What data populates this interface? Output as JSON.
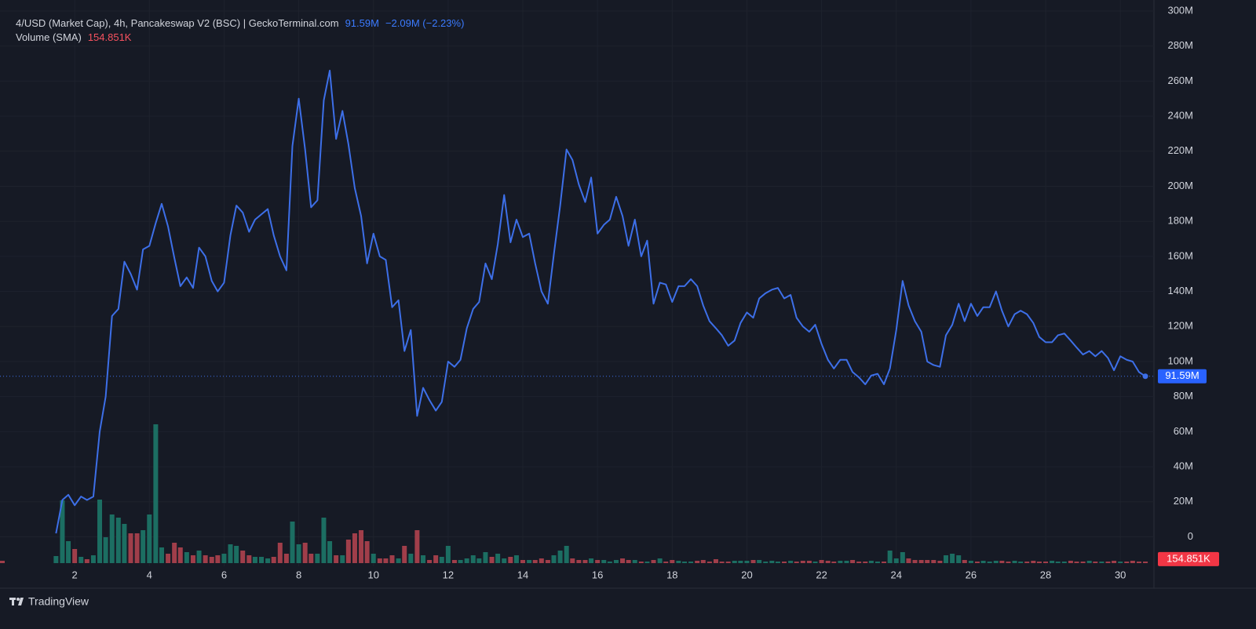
{
  "chart_data": {
    "type": "line",
    "header": {
      "title": "4/USD (Market Cap), 4h, Pancakeswap V2 (BSC) | GeckoTerminal.com",
      "last": {
        "value": 91.59,
        "label": "91.59M"
      },
      "change": "−2.09M (−2.23%)"
    },
    "volume_sma": {
      "label": "Volume (SMA)",
      "value": 154.851,
      "value_label": "154.851K"
    },
    "footer": {
      "brand": "TradingView"
    },
    "x": [
      1.5,
      1.67,
      1.83,
      2,
      2.17,
      2.33,
      2.5,
      2.67,
      2.83,
      3,
      3.17,
      3.33,
      3.5,
      3.67,
      3.83,
      4,
      4.17,
      4.33,
      4.5,
      4.67,
      4.83,
      5,
      5.17,
      5.33,
      5.5,
      5.67,
      5.83,
      6,
      6.17,
      6.33,
      6.5,
      6.67,
      6.83,
      7,
      7.17,
      7.33,
      7.5,
      7.67,
      7.83,
      8,
      8.17,
      8.33,
      8.5,
      8.67,
      8.83,
      9,
      9.17,
      9.33,
      9.5,
      9.67,
      9.83,
      10,
      10.17,
      10.33,
      10.5,
      10.67,
      10.83,
      11,
      11.17,
      11.33,
      11.5,
      11.67,
      11.83,
      12,
      12.17,
      12.33,
      12.5,
      12.67,
      12.83,
      13,
      13.17,
      13.33,
      13.5,
      13.67,
      13.83,
      14,
      14.17,
      14.33,
      14.5,
      14.67,
      14.83,
      15,
      15.17,
      15.33,
      15.5,
      15.67,
      15.83,
      16,
      16.17,
      16.33,
      16.5,
      16.67,
      16.83,
      17,
      17.17,
      17.33,
      17.5,
      17.67,
      17.83,
      18,
      18.17,
      18.33,
      18.5,
      18.67,
      18.83,
      19,
      19.17,
      19.33,
      19.5,
      19.67,
      19.83,
      20,
      20.17,
      20.33,
      20.5,
      20.67,
      20.83,
      21,
      21.17,
      21.33,
      21.5,
      21.67,
      21.83,
      22,
      22.17,
      22.33,
      22.5,
      22.67,
      22.83,
      23,
      23.17,
      23.33,
      23.5,
      23.67,
      23.83,
      24,
      24.17,
      24.33,
      24.5,
      24.67,
      24.83,
      25,
      25.17,
      25.33,
      25.5,
      25.67,
      25.83,
      26,
      26.17,
      26.33,
      26.5,
      26.67,
      26.83,
      27,
      27.17,
      27.33,
      27.5,
      27.67,
      27.83,
      28,
      28.17,
      28.33,
      28.5,
      28.67,
      28.83,
      29,
      29.17,
      29.33,
      29.5,
      29.67,
      29.83,
      30,
      30.17,
      30.33,
      30.5,
      30.67
    ],
    "series": [
      {
        "color": "#3d6fe8",
        "values": [
          2,
          21,
          24,
          18,
          23,
          21,
          23,
          60,
          80,
          126,
          130,
          157,
          150,
          141,
          164,
          166,
          179,
          190,
          177,
          159,
          143,
          148,
          142,
          165,
          160,
          146,
          140,
          145,
          172,
          189,
          185,
          174,
          181,
          184,
          187,
          172,
          160,
          152,
          223,
          250,
          221,
          188,
          192,
          249,
          266,
          227,
          243,
          224,
          199,
          183,
          156,
          173,
          160,
          158,
          131,
          135,
          106,
          118,
          69,
          85,
          78,
          72,
          77,
          100,
          97,
          101,
          119,
          130,
          134,
          156,
          147,
          167,
          195,
          168,
          181,
          171,
          173,
          156,
          140,
          133,
          161,
          189,
          221,
          215,
          201,
          191,
          205,
          173,
          178,
          181,
          194,
          183,
          166,
          181,
          160,
          169,
          133,
          145,
          144,
          134,
          143,
          143,
          147,
          143,
          132,
          123,
          119,
          115,
          109,
          112,
          122,
          128,
          125,
          136,
          139,
          141,
          142,
          136,
          138,
          125,
          120,
          117,
          121,
          110,
          101,
          96,
          101,
          101,
          94,
          91,
          87,
          92,
          93,
          87,
          96,
          118,
          146,
          132,
          123,
          117,
          100,
          98,
          97,
          115,
          121,
          133,
          123,
          133,
          126,
          131,
          131,
          140,
          129,
          120,
          127,
          129,
          127,
          122,
          114,
          111,
          111,
          115,
          116,
          112,
          108,
          104,
          106,
          103,
          106,
          102,
          95,
          103,
          101,
          100,
          94,
          91.59
        ]
      }
    ],
    "volume": {
      "up_color": "#1c6e62",
      "down_color": "#a03e4a",
      "values": [
        270,
        2400,
        840,
        540,
        240,
        150,
        300,
        2430,
        990,
        1860,
        1740,
        1500,
        1140,
        1140,
        1260,
        1860,
        5310,
        600,
        360,
        780,
        600,
        420,
        300,
        480,
        300,
        240,
        300,
        360,
        720,
        660,
        480,
        300,
        240,
        240,
        180,
        240,
        780,
        360,
        1590,
        720,
        780,
        360,
        360,
        1740,
        840,
        300,
        300,
        900,
        1140,
        1260,
        840,
        360,
        180,
        180,
        300,
        180,
        660,
        360,
        1260,
        300,
        120,
        300,
        240,
        660,
        120,
        120,
        180,
        300,
        180,
        420,
        240,
        360,
        180,
        240,
        300,
        120,
        120,
        120,
        180,
        120,
        300,
        480,
        660,
        180,
        120,
        120,
        180,
        120,
        120,
        60,
        120,
        180,
        120,
        120,
        60,
        60,
        120,
        180,
        60,
        120,
        90,
        60,
        60,
        90,
        120,
        60,
        150,
        60,
        60,
        90,
        90,
        90,
        120,
        120,
        60,
        90,
        60,
        60,
        90,
        60,
        90,
        90,
        60,
        120,
        90,
        60,
        90,
        90,
        120,
        60,
        60,
        90,
        60,
        60,
        480,
        180,
        420,
        180,
        120,
        120,
        120,
        120,
        90,
        300,
        360,
        300,
        120,
        90,
        60,
        90,
        60,
        90,
        90,
        60,
        90,
        60,
        60,
        90,
        60,
        60,
        90,
        60,
        60,
        90,
        60,
        60,
        90,
        60,
        60,
        60,
        90,
        60,
        60,
        90,
        60,
        60,
        90,
        60,
        90
      ],
      "ylim": [
        0,
        6000
      ]
    },
    "xlim": [
      0,
      30.9
    ],
    "xticks": [
      2,
      4,
      6,
      8,
      10,
      12,
      14,
      16,
      18,
      20,
      22,
      24,
      26,
      28,
      30
    ],
    "ylim": [
      -15,
      300
    ],
    "yticks": [
      0,
      {
        "value": 20,
        "label": "20M"
      },
      {
        "value": 40,
        "label": "40M"
      },
      {
        "value": 60,
        "label": "60M"
      },
      {
        "value": 80,
        "label": "80M"
      },
      {
        "value": 100,
        "label": "100M"
      },
      {
        "value": 120,
        "label": "120M"
      },
      {
        "value": 140,
        "label": "140M"
      },
      {
        "value": 160,
        "label": "160M"
      },
      {
        "value": 180,
        "label": "180M"
      },
      {
        "value": 200,
        "label": "200M"
      },
      {
        "value": 220,
        "label": "220M"
      },
      {
        "value": 240,
        "label": "240M"
      },
      {
        "value": 260,
        "label": "260M"
      },
      {
        "value": 280,
        "label": "280M"
      },
      {
        "value": 300,
        "label": "300M"
      }
    ],
    "grid": true
  }
}
